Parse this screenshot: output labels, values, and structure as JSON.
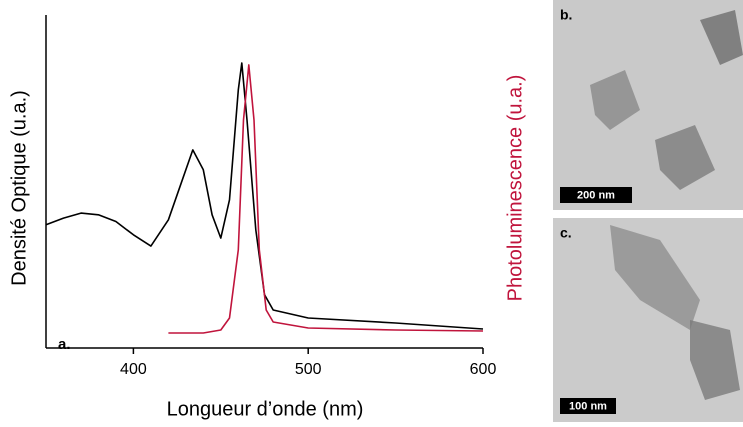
{
  "chart_data": {
    "type": "line",
    "x_label": "Longueur d’onde (nm)",
    "y_label": "Densité Optique (u.a.)",
    "y2_label": "Photoluminescence (u.a.)",
    "annotation": "a.",
    "xlim": [
      350,
      600
    ],
    "xticks": [
      400,
      500,
      600
    ],
    "ylim": [
      0,
      1
    ],
    "series": [
      {
        "name": "Densité Optique",
        "color": "#000000",
        "x": [
          350,
          360,
          370,
          380,
          390,
          400,
          410,
          420,
          427,
          434,
          440,
          445,
          450,
          455,
          460,
          462,
          465,
          470,
          475,
          480,
          500,
          550,
          600
        ],
        "values": [
          0.37,
          0.39,
          0.405,
          0.4,
          0.38,
          0.34,
          0.306,
          0.385,
          0.49,
          0.595,
          0.535,
          0.4,
          0.33,
          0.445,
          0.775,
          0.856,
          0.685,
          0.355,
          0.16,
          0.114,
          0.09,
          0.075,
          0.057
        ]
      },
      {
        "name": "Photoluminescence",
        "color": "#c0143c",
        "x": [
          420,
          440,
          450,
          455,
          460,
          463,
          466,
          469,
          472,
          476,
          480,
          500,
          550,
          600
        ],
        "values": [
          0.045,
          0.045,
          0.054,
          0.09,
          0.295,
          0.685,
          0.85,
          0.685,
          0.295,
          0.114,
          0.078,
          0.06,
          0.054,
          0.051
        ]
      }
    ]
  },
  "panels": [
    {
      "label": "b.",
      "scale_bar": "200 nm"
    },
    {
      "label": "c.",
      "scale_bar": "100 nm"
    }
  ]
}
